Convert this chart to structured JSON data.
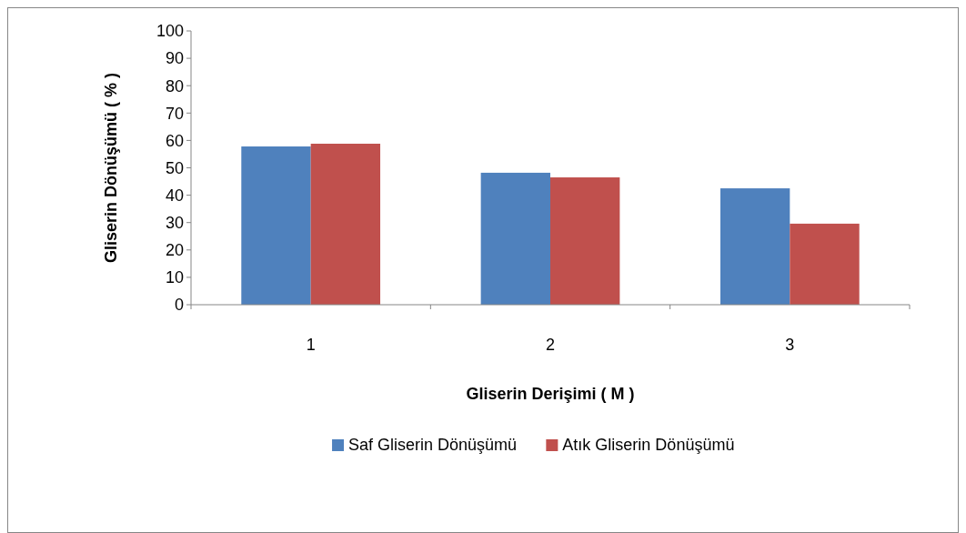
{
  "chart_data": {
    "type": "bar",
    "xlabel": "Gliserin Derişimi ( M )",
    "ylabel": "Gliserin Dönüşümü ( % )",
    "categories": [
      "1",
      "2",
      "3"
    ],
    "series": [
      {
        "name": "Saf Gliserin Dönüşümü",
        "color": "#4f81bd",
        "values": [
          57.8,
          48.2,
          42.5
        ]
      },
      {
        "name": "Atık Gliserin Dönüşümü",
        "color": "#c0504d",
        "values": [
          58.8,
          46.5,
          29.6
        ]
      }
    ],
    "ylim": [
      0,
      100
    ],
    "yticks": [
      0,
      10,
      20,
      30,
      40,
      50,
      60,
      70,
      80,
      90,
      100
    ],
    "grid": false,
    "legend": "bottom"
  }
}
